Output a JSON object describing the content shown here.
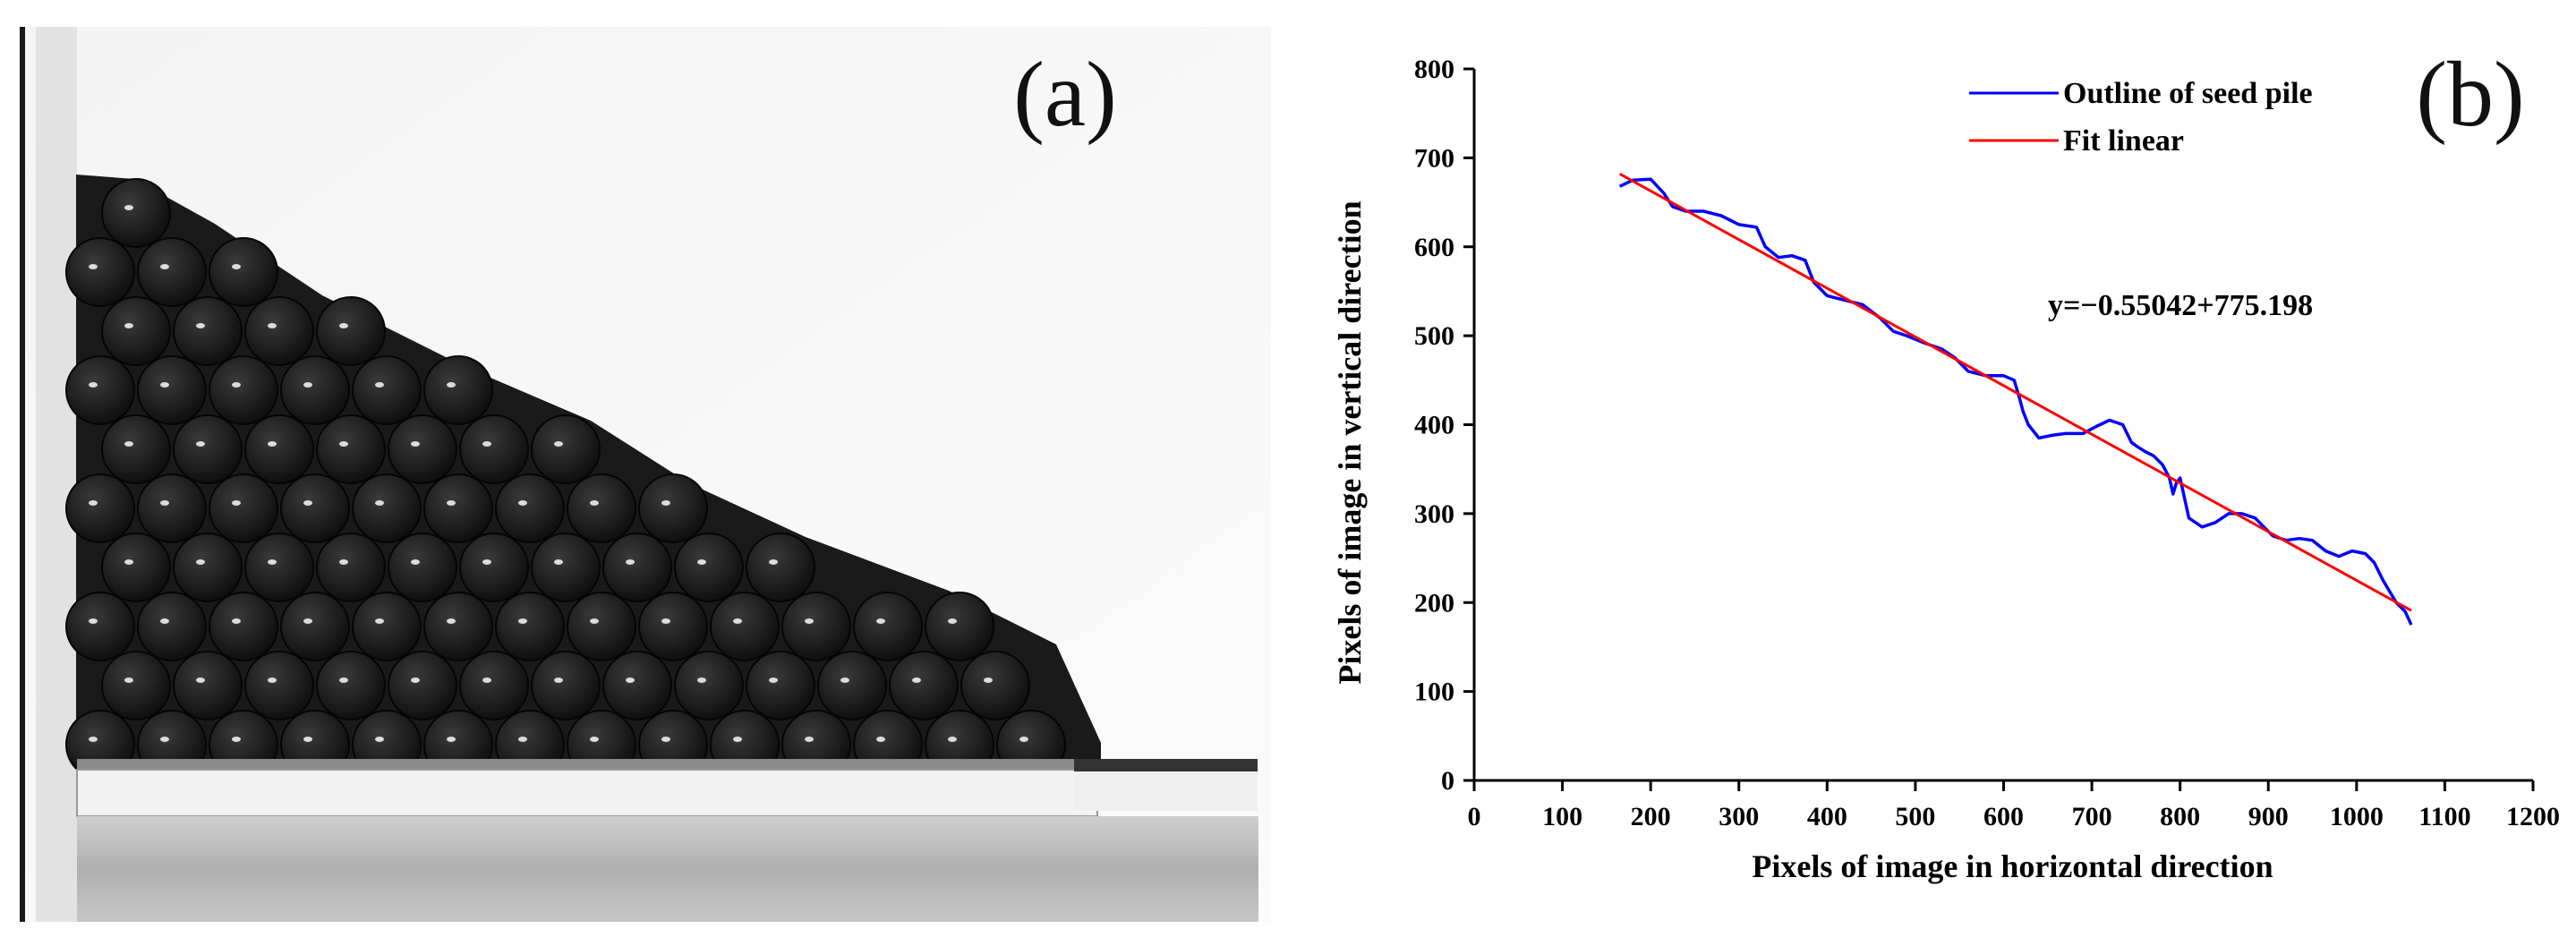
{
  "panel_a": {
    "label": "(a)"
  },
  "panel_b": {
    "label": "(b)"
  },
  "colors": {
    "outline": "#0000ff",
    "fit": "#ff0000",
    "axis": "#000000",
    "seed": "#141414"
  },
  "chart_data": {
    "type": "line",
    "title": "",
    "xlabel": "Pixels of image in horizontal direction",
    "ylabel": "Pixels of image in vertical direction",
    "xlim": [
      0,
      1200
    ],
    "ylim": [
      0,
      800
    ],
    "xticks": [
      0,
      100,
      200,
      300,
      400,
      500,
      600,
      700,
      800,
      900,
      1000,
      1100,
      1200
    ],
    "yticks": [
      0,
      100,
      200,
      300,
      400,
      500,
      600,
      700,
      800
    ],
    "annotation": "y=−0.55042+775.198",
    "legend": {
      "position": "top-right",
      "entries": [
        "Outline of seed pile",
        "Fit linear"
      ]
    },
    "series": [
      {
        "name": "Outline of seed pile",
        "color": "#0000ff",
        "x": [
          165,
          180,
          200,
          215,
          225,
          240,
          260,
          280,
          300,
          320,
          330,
          345,
          360,
          375,
          385,
          400,
          420,
          440,
          460,
          475,
          490,
          510,
          530,
          545,
          560,
          580,
          600,
          612,
          618,
          622,
          628,
          640,
          655,
          670,
          690,
          705,
          720,
          735,
          745,
          752,
          760,
          770,
          780,
          788,
          792,
          796,
          800,
          810,
          825,
          840,
          855,
          870,
          885,
          895,
          905,
          920,
          935,
          950,
          965,
          980,
          995,
          1010,
          1020,
          1030,
          1045,
          1055,
          1062
        ],
        "y": [
          668,
          675,
          676,
          660,
          645,
          640,
          640,
          635,
          625,
          622,
          600,
          588,
          590,
          585,
          560,
          545,
          540,
          535,
          520,
          505,
          500,
          492,
          485,
          475,
          460,
          455,
          455,
          450,
          430,
          415,
          400,
          385,
          388,
          390,
          390,
          398,
          405,
          400,
          380,
          375,
          370,
          365,
          355,
          340,
          322,
          335,
          340,
          295,
          285,
          290,
          300,
          300,
          295,
          285,
          275,
          270,
          272,
          270,
          258,
          252,
          258,
          255,
          245,
          225,
          200,
          190,
          175
        ]
      },
      {
        "name": "Fit linear",
        "color": "#ff0000",
        "x": [
          165,
          1062
        ],
        "y": [
          682,
          191
        ]
      }
    ]
  }
}
